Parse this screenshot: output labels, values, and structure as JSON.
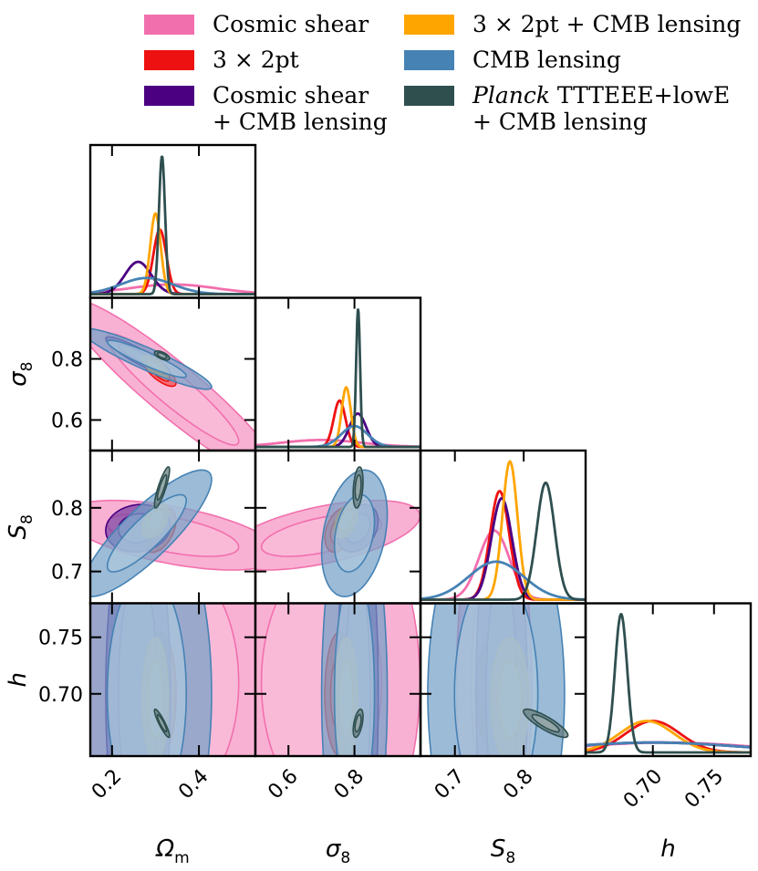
{
  "legend": [
    {
      "label": "Cosmic shear",
      "color": "#f26fad"
    },
    {
      "label": "3 × 2pt",
      "color": "#ee1111"
    },
    {
      "label": "Cosmic shear\n+ CMB lensing",
      "color": "#4b0082"
    },
    {
      "label": "3 × 2pt + CMB lensing",
      "color": "#ffa500"
    },
    {
      "label": "CMB lensing",
      "color": "#4682b4"
    },
    {
      "label": "Planck TTTEEE+lowE\n+ CMB lensing",
      "label_italic_part": "Planck",
      "color": "#2f4f4f"
    }
  ],
  "chart_data": {
    "type": "triangle",
    "params": [
      {
        "symbol": "Ωm",
        "label": "Ω",
        "sub": "m",
        "range": [
          0.15,
          0.53
        ],
        "ticks": [
          0.2,
          0.4
        ],
        "tick_labels": [
          "0.2",
          "0.4"
        ]
      },
      {
        "symbol": "σ8",
        "label": "σ",
        "sub": "8",
        "range": [
          0.5,
          1.0
        ],
        "ticks": [
          0.6,
          0.8
        ],
        "tick_labels": [
          "0.6",
          "0.8"
        ]
      },
      {
        "symbol": "S8",
        "label": "S",
        "sub": "8",
        "range": [
          0.65,
          0.89
        ],
        "ticks": [
          0.7,
          0.8
        ],
        "tick_labels": [
          "0.7",
          "0.8"
        ]
      },
      {
        "symbol": "h",
        "label": "h",
        "sub": "",
        "range": [
          0.645,
          0.78
        ],
        "ticks": [
          0.7,
          0.75
        ],
        "tick_labels": [
          "0.70",
          "0.75"
        ]
      }
    ],
    "series": [
      {
        "name": "Cosmic shear",
        "color": "#f26fad",
        "mean": [
          0.34,
          0.7,
          0.757,
          0.71
        ],
        "sigma": [
          0.1,
          0.12,
          0.022,
          0.07
        ],
        "corr": [
          [
            0,
            1,
            -0.93
          ],
          [
            0,
            2,
            -0.55
          ],
          [
            1,
            2,
            0.55
          ]
        ]
      },
      {
        "name": "3 × 2pt",
        "color": "#ee1111",
        "mean": [
          0.31,
          0.755,
          0.765,
          0.7
        ],
        "sigma": [
          0.015,
          0.018,
          0.014,
          0.022
        ],
        "corr": [
          [
            0,
            1,
            -0.75
          ],
          [
            0,
            2,
            0.45
          ],
          [
            1,
            2,
            0.35
          ]
        ]
      },
      {
        "name": "Cosmic shear + CMB lensing",
        "color": "#4b0082",
        "mean": [
          0.26,
          0.81,
          0.768,
          0.7
        ],
        "sigma": [
          0.03,
          0.025,
          0.015,
          0.07
        ],
        "corr": [
          [
            0,
            1,
            -0.9
          ],
          [
            0,
            2,
            0.1
          ],
          [
            1,
            2,
            0.3
          ]
        ]
      },
      {
        "name": "3 × 2pt + CMB lensing",
        "color": "#ffa500",
        "mean": [
          0.3,
          0.775,
          0.78,
          0.695
        ],
        "sigma": [
          0.012,
          0.014,
          0.011,
          0.022
        ],
        "corr": [
          [
            0,
            1,
            -0.7
          ],
          [
            0,
            2,
            0.45
          ],
          [
            1,
            2,
            0.45
          ]
        ]
      },
      {
        "name": "CMB lensing",
        "color": "#4682b4",
        "mean": [
          0.28,
          0.8,
          0.76,
          0.7
        ],
        "sigma": [
          0.06,
          0.04,
          0.04,
          0.07
        ],
        "corr": [
          [
            0,
            1,
            -0.92
          ],
          [
            0,
            2,
            0.85
          ],
          [
            1,
            2,
            0.3
          ]
        ]
      },
      {
        "name": "Planck TTTEEE+lowE + CMB lensing",
        "color": "#2f4f4f",
        "mean": [
          0.315,
          0.811,
          0.832,
          0.674
        ],
        "sigma": [
          0.007,
          0.006,
          0.013,
          0.005
        ],
        "corr": [
          [
            0,
            1,
            -0.6
          ],
          [
            0,
            2,
            0.85
          ],
          [
            0,
            3,
            -0.9
          ],
          [
            1,
            2,
            0.3
          ],
          [
            1,
            3,
            0.5
          ],
          [
            2,
            3,
            -0.85
          ]
        ]
      }
    ]
  }
}
